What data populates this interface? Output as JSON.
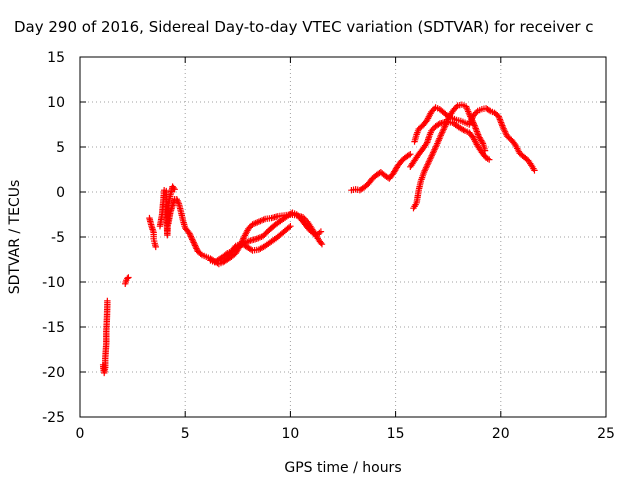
{
  "chart_data": {
    "type": "scatter",
    "title": "Day 290 of 2016, Sidereal Day-to-day VTEC variation (SDTVAR) for receiver c",
    "xlabel": "GPS time / hours",
    "ylabel": "SDTVAR / TECUs",
    "xlim": [
      0,
      25
    ],
    "ylim": [
      -25,
      15
    ],
    "xticks": [
      0,
      5,
      10,
      15,
      20,
      25
    ],
    "yticks": [
      -25,
      -20,
      -15,
      -10,
      -5,
      0,
      5,
      10,
      15
    ],
    "grid": true,
    "marker": "+",
    "colors": {
      "series": "#ff0000",
      "grid": "#a0a0a0",
      "axis": "#000000"
    },
    "series": [
      {
        "segments": [
          {
            "points": [
              [
                1.1,
                -19.2
              ],
              [
                1.12,
                -19.8
              ],
              [
                1.15,
                -20.1
              ],
              [
                1.2,
                -19.5
              ],
              [
                1.2,
                -18.5
              ],
              [
                1.25,
                -16.8
              ],
              [
                1.25,
                -15.5
              ],
              [
                1.28,
                -14
              ],
              [
                1.3,
                -12.5
              ],
              [
                1.3,
                -12.1
              ]
            ]
          },
          {
            "points": [
              [
                2.15,
                -10.2
              ],
              [
                2.2,
                -9.8
              ],
              [
                2.25,
                -9.6
              ],
              [
                2.3,
                -9.5
              ]
            ]
          },
          {
            "points": [
              [
                3.3,
                -2.9
              ],
              [
                3.4,
                -3.8
              ],
              [
                3.5,
                -4.5
              ],
              [
                3.5,
                -5.2
              ],
              [
                3.55,
                -5.7
              ],
              [
                3.6,
                -6.1
              ]
            ]
          },
          {
            "points": [
              [
                3.8,
                -3.8
              ],
              [
                3.9,
                -2.5
              ],
              [
                3.95,
                -1.2
              ],
              [
                4.0,
                0.2
              ],
              [
                4.1,
                0.1
              ],
              [
                4.1,
                -1.6
              ],
              [
                4.15,
                -4.8
              ],
              [
                4.2,
                -1.5
              ],
              [
                4.3,
                -0.3
              ],
              [
                4.4,
                0.6
              ],
              [
                4.5,
                0.3
              ]
            ]
          },
          {
            "points": [
              [
                4.2,
                -3.5
              ],
              [
                4.3,
                -2.2
              ],
              [
                4.4,
                -1.5
              ],
              [
                4.5,
                -0.8
              ],
              [
                4.6,
                -0.8
              ],
              [
                4.7,
                -1.3
              ],
              [
                4.8,
                -2.2
              ],
              [
                4.9,
                -3.2
              ],
              [
                5.0,
                -4.0
              ],
              [
                5.2,
                -4.6
              ],
              [
                5.4,
                -5.6
              ],
              [
                5.6,
                -6.6
              ],
              [
                5.8,
                -7.0
              ],
              [
                6.0,
                -7.2
              ],
              [
                6.2,
                -7.4
              ],
              [
                6.4,
                -7.7
              ],
              [
                6.6,
                -8.0
              ],
              [
                6.8,
                -7.8
              ],
              [
                7.0,
                -7.5
              ],
              [
                7.2,
                -7.2
              ],
              [
                7.4,
                -6.8
              ],
              [
                7.6,
                -6.0
              ],
              [
                7.7,
                -5.5
              ],
              [
                7.8,
                -5.0
              ],
              [
                8.0,
                -4.1
              ],
              [
                8.2,
                -3.6
              ],
              [
                8.5,
                -3.3
              ],
              [
                8.8,
                -3.0
              ],
              [
                9.1,
                -2.9
              ],
              [
                9.4,
                -2.7
              ],
              [
                9.7,
                -2.6
              ],
              [
                10.0,
                -2.5
              ],
              [
                10.3,
                -2.6
              ],
              [
                10.6,
                -2.8
              ],
              [
                10.8,
                -3.3
              ],
              [
                11.0,
                -4.0
              ],
              [
                11.2,
                -4.8
              ],
              [
                11.4,
                -5.5
              ],
              [
                11.5,
                -5.8
              ]
            ]
          },
          {
            "points": [
              [
                6.2,
                -7.6
              ],
              [
                6.4,
                -7.8
              ],
              [
                6.6,
                -7.5
              ],
              [
                6.8,
                -7.2
              ],
              [
                7.0,
                -6.8
              ],
              [
                7.2,
                -6.6
              ],
              [
                7.5,
                -6.1
              ],
              [
                7.8,
                -5.7
              ],
              [
                8.1,
                -5.4
              ],
              [
                8.4,
                -5.2
              ],
              [
                8.7,
                -4.9
              ],
              [
                9.0,
                -4.2
              ],
              [
                9.3,
                -3.6
              ],
              [
                9.6,
                -3.1
              ],
              [
                9.9,
                -2.6
              ],
              [
                10.1,
                -2.3
              ],
              [
                10.3,
                -2.5
              ],
              [
                10.5,
                -3.0
              ],
              [
                10.7,
                -3.6
              ],
              [
                10.9,
                -4.2
              ],
              [
                11.1,
                -4.6
              ],
              [
                11.3,
                -4.7
              ],
              [
                11.45,
                -4.4
              ]
            ]
          },
          {
            "points": [
              [
                6.8,
                -7.7
              ],
              [
                7.0,
                -7.2
              ],
              [
                7.2,
                -6.6
              ],
              [
                7.4,
                -6.0
              ],
              [
                7.6,
                -5.8
              ],
              [
                7.8,
                -5.9
              ],
              [
                8.0,
                -6.2
              ],
              [
                8.2,
                -6.5
              ],
              [
                8.5,
                -6.4
              ],
              [
                8.8,
                -6.0
              ],
              [
                9.1,
                -5.5
              ],
              [
                9.4,
                -5.0
              ],
              [
                9.6,
                -4.6
              ],
              [
                9.8,
                -4.2
              ],
              [
                10.0,
                -3.8
              ]
            ]
          },
          {
            "points": [
              [
                12.9,
                0.2
              ],
              [
                13.1,
                0.3
              ],
              [
                13.3,
                0.2
              ],
              [
                13.5,
                0.5
              ],
              [
                13.7,
                0.9
              ],
              [
                13.9,
                1.5
              ],
              [
                14.1,
                1.9
              ],
              [
                14.3,
                2.2
              ],
              [
                14.5,
                1.8
              ],
              [
                14.7,
                1.5
              ],
              [
                14.9,
                2.1
              ],
              [
                15.1,
                2.9
              ],
              [
                15.3,
                3.5
              ],
              [
                15.5,
                3.9
              ],
              [
                15.7,
                4.2
              ]
            ]
          },
          {
            "points": [
              [
                15.7,
                2.8
              ],
              [
                15.9,
                3.5
              ],
              [
                16.1,
                4.2
              ],
              [
                16.3,
                4.8
              ],
              [
                16.5,
                5.5
              ],
              [
                16.6,
                6.2
              ],
              [
                16.7,
                6.8
              ],
              [
                16.9,
                7.3
              ],
              [
                17.1,
                7.6
              ],
              [
                17.4,
                7.8
              ],
              [
                17.7,
                7.7
              ],
              [
                18.0,
                7.2
              ],
              [
                18.3,
                6.8
              ],
              [
                18.5,
                6.6
              ],
              [
                18.7,
                6.0
              ],
              [
                18.9,
                5.1
              ],
              [
                19.1,
                4.4
              ],
              [
                19.3,
                3.8
              ],
              [
                19.45,
                3.6
              ]
            ]
          },
          {
            "points": [
              [
                15.85,
                -1.8
              ],
              [
                16.0,
                -1.2
              ],
              [
                16.1,
                0.2
              ],
              [
                16.2,
                1.2
              ],
              [
                16.35,
                2.2
              ],
              [
                16.55,
                3.2
              ],
              [
                16.75,
                4.2
              ],
              [
                16.95,
                5.2
              ],
              [
                17.15,
                6.3
              ],
              [
                17.35,
                7.3
              ],
              [
                17.55,
                8.4
              ],
              [
                17.75,
                9.1
              ],
              [
                17.95,
                9.6
              ],
              [
                18.15,
                9.7
              ],
              [
                18.35,
                9.5
              ],
              [
                18.55,
                8.4
              ],
              [
                18.75,
                7.4
              ],
              [
                18.95,
                6.2
              ],
              [
                19.15,
                5.4
              ],
              [
                19.25,
                4.6
              ]
            ]
          },
          {
            "points": [
              [
                15.9,
                5.6
              ],
              [
                16.0,
                6.4
              ],
              [
                16.1,
                7.0
              ],
              [
                16.3,
                7.4
              ],
              [
                16.5,
                8.0
              ],
              [
                16.7,
                8.9
              ],
              [
                16.9,
                9.4
              ],
              [
                17.1,
                9.2
              ],
              [
                17.3,
                8.8
              ],
              [
                17.5,
                8.4
              ],
              [
                17.7,
                8.2
              ],
              [
                17.9,
                8.0
              ],
              [
                18.1,
                7.9
              ],
              [
                18.3,
                7.7
              ],
              [
                18.5,
                7.5
              ],
              [
                18.7,
                8.5
              ],
              [
                18.9,
                9.0
              ],
              [
                19.1,
                9.2
              ],
              [
                19.3,
                9.3
              ],
              [
                19.5,
                9.0
              ],
              [
                19.7,
                8.8
              ],
              [
                19.9,
                8.4
              ],
              [
                20.1,
                7.2
              ],
              [
                20.3,
                6.2
              ],
              [
                20.5,
                5.8
              ],
              [
                20.7,
                5.2
              ],
              [
                20.9,
                4.3
              ],
              [
                21.1,
                3.9
              ],
              [
                21.3,
                3.5
              ],
              [
                21.5,
                2.8
              ],
              [
                21.6,
                2.4
              ]
            ]
          }
        ]
      }
    ]
  }
}
